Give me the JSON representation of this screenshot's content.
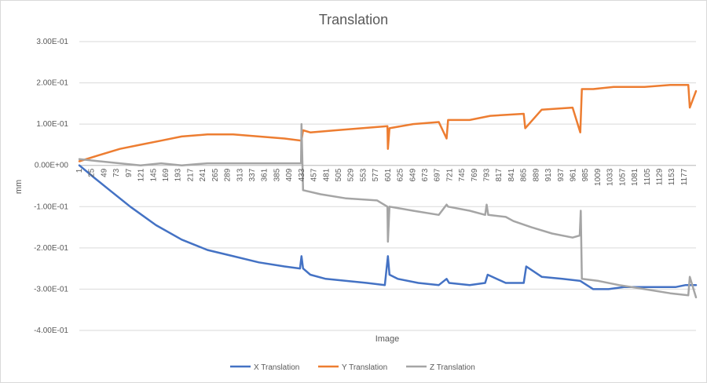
{
  "chart_data": {
    "type": "line",
    "title": "Translation",
    "xlabel": "Image",
    "ylabel": "mm",
    "ylim": [
      -0.4,
      0.3
    ],
    "yticks": [
      "3.00E-01",
      "2.00E-01",
      "1.00E-01",
      "0.00E+00",
      "-1.00E-01",
      "-2.00E-01",
      "-3.00E-01",
      "-4.00E-01"
    ],
    "ytick_values": [
      0.3,
      0.2,
      0.1,
      0.0,
      -0.1,
      -0.2,
      -0.3,
      -0.4
    ],
    "xlim": [
      1,
      1200
    ],
    "xticks": [
      "1",
      "25",
      "49",
      "73",
      "97",
      "121",
      "145",
      "169",
      "193",
      "217",
      "241",
      "265",
      "289",
      "313",
      "337",
      "361",
      "385",
      "409",
      "433",
      "457",
      "481",
      "505",
      "529",
      "553",
      "577",
      "601",
      "625",
      "649",
      "673",
      "697",
      "721",
      "745",
      "769",
      "793",
      "817",
      "841",
      "865",
      "889",
      "913",
      "937",
      "961",
      "985",
      "1009",
      "1033",
      "1057",
      "1081",
      "1105",
      "1129",
      "1153",
      "1177"
    ],
    "grid": true,
    "legend_position": "bottom",
    "series": [
      {
        "name": "X Translation",
        "color": "#4472c4",
        "x": [
          1,
          30,
          60,
          100,
          150,
          200,
          250,
          300,
          350,
          400,
          430,
          433,
          436,
          450,
          480,
          520,
          560,
          595,
          601,
          604,
          620,
          660,
          700,
          715,
          720,
          760,
          790,
          795,
          830,
          865,
          870,
          900,
          940,
          975,
          1000,
          1030,
          1060,
          1100,
          1140,
          1160,
          1180,
          1200
        ],
        "y": [
          0.0,
          -0.03,
          -0.06,
          -0.1,
          -0.145,
          -0.18,
          -0.205,
          -0.22,
          -0.235,
          -0.245,
          -0.25,
          -0.22,
          -0.25,
          -0.265,
          -0.275,
          -0.28,
          -0.285,
          -0.29,
          -0.22,
          -0.265,
          -0.275,
          -0.285,
          -0.29,
          -0.275,
          -0.285,
          -0.29,
          -0.285,
          -0.265,
          -0.285,
          -0.285,
          -0.245,
          -0.27,
          -0.275,
          -0.28,
          -0.3,
          -0.3,
          -0.295,
          -0.295,
          -0.295,
          -0.295,
          -0.29,
          -0.29
        ]
      },
      {
        "name": "Y Translation",
        "color": "#ed7d31",
        "x": [
          1,
          40,
          80,
          120,
          160,
          200,
          250,
          300,
          350,
          400,
          433,
          436,
          450,
          500,
          550,
          600,
          601,
          604,
          650,
          700,
          715,
          718,
          760,
          800,
          865,
          868,
          900,
          960,
          975,
          978,
          1000,
          1040,
          1100,
          1150,
          1185,
          1188,
          1200
        ],
        "y": [
          0.01,
          0.025,
          0.04,
          0.05,
          0.06,
          0.07,
          0.075,
          0.075,
          0.07,
          0.065,
          0.06,
          0.085,
          0.08,
          0.085,
          0.09,
          0.095,
          0.04,
          0.09,
          0.1,
          0.105,
          0.065,
          0.11,
          0.11,
          0.12,
          0.125,
          0.09,
          0.135,
          0.14,
          0.08,
          0.185,
          0.185,
          0.19,
          0.19,
          0.195,
          0.195,
          0.14,
          0.18
        ]
      },
      {
        "name": "Z Translation",
        "color": "#a5a5a5",
        "x": [
          1,
          40,
          80,
          120,
          160,
          200,
          250,
          300,
          350,
          400,
          432,
          433,
          436,
          470,
          520,
          580,
          600,
          601,
          604,
          650,
          700,
          715,
          718,
          760,
          790,
          793,
          796,
          830,
          845,
          880,
          920,
          960,
          974,
          976,
          978,
          1010,
          1050,
          1100,
          1150,
          1185,
          1188,
          1200
        ],
        "y": [
          0.015,
          0.01,
          0.005,
          0.0,
          0.005,
          0.0,
          0.005,
          0.005,
          0.005,
          0.005,
          0.005,
          0.1,
          -0.06,
          -0.07,
          -0.08,
          -0.085,
          -0.1,
          -0.185,
          -0.1,
          -0.11,
          -0.12,
          -0.095,
          -0.1,
          -0.11,
          -0.12,
          -0.095,
          -0.12,
          -0.125,
          -0.135,
          -0.15,
          -0.165,
          -0.175,
          -0.17,
          -0.11,
          -0.275,
          -0.28,
          -0.29,
          -0.3,
          -0.31,
          -0.315,
          -0.27,
          -0.32
        ]
      }
    ]
  }
}
